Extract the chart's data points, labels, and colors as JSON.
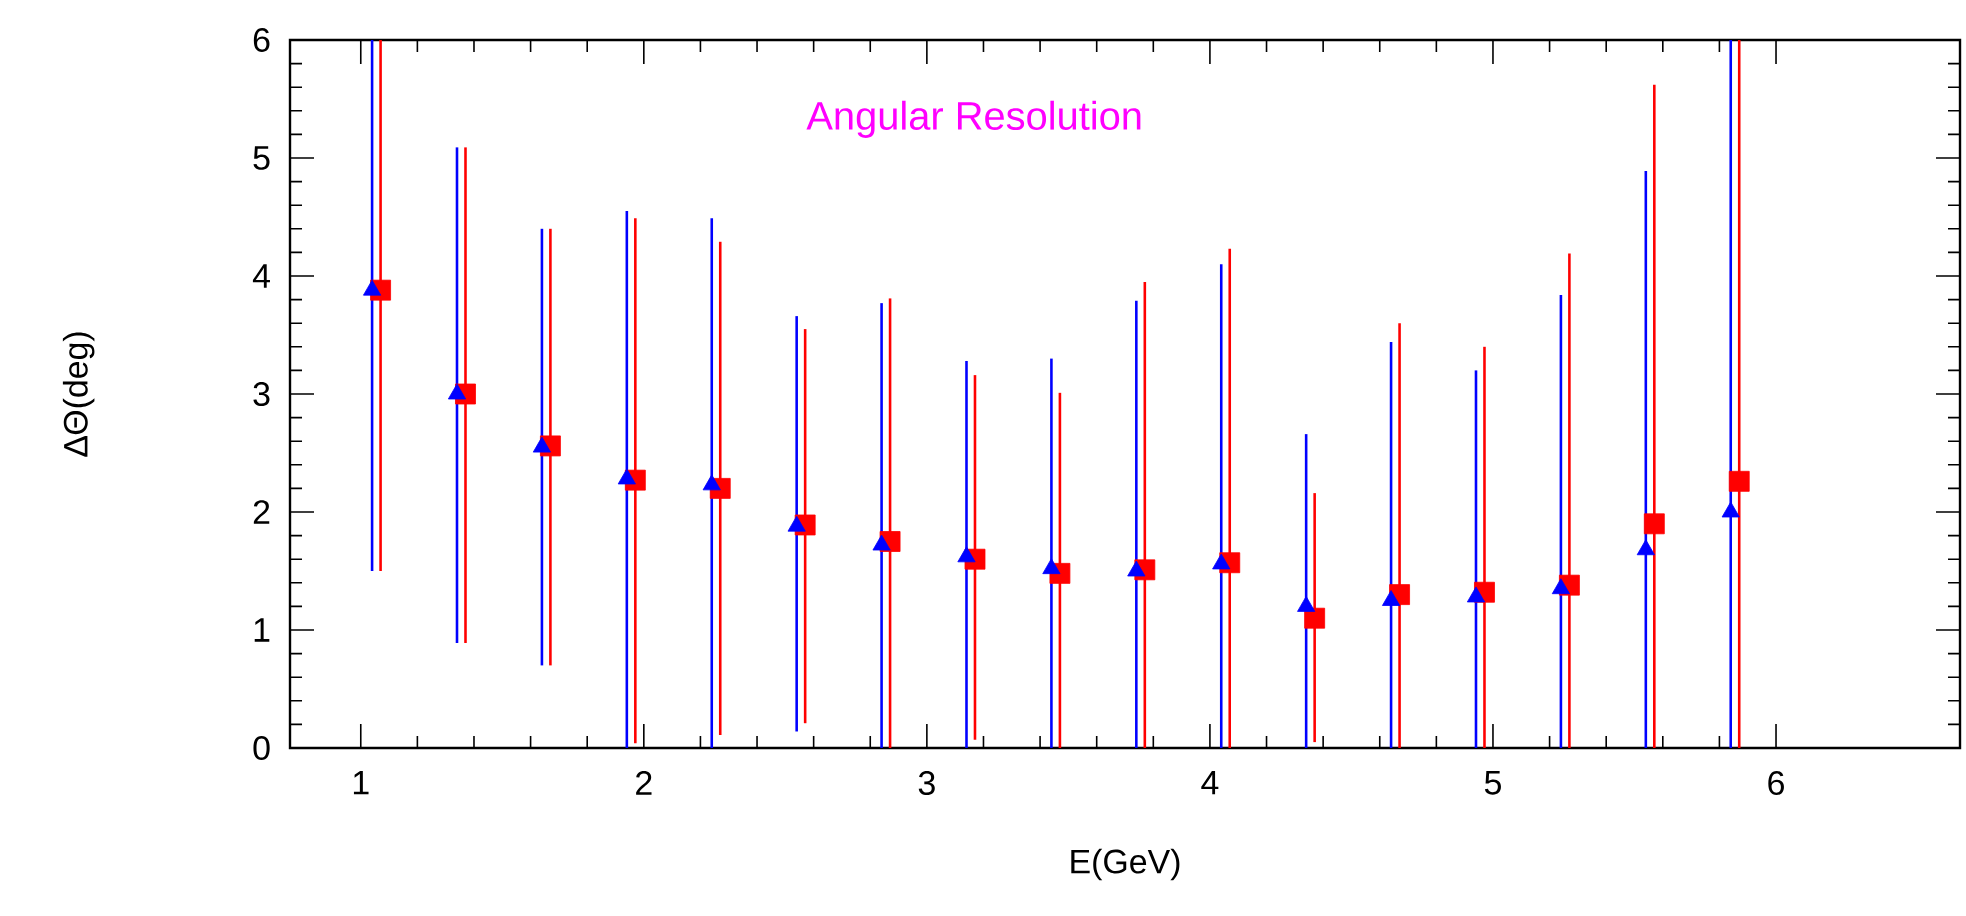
{
  "chart_data": {
    "type": "scatter",
    "title": "Angular Resolution",
    "xlabel": "E(GeV)",
    "ylabel": "ΔΘ(deg)",
    "xlim": [
      0.75,
      6.65
    ],
    "xticks": [
      1,
      2,
      3,
      4,
      5,
      6
    ],
    "ylim": [
      0,
      6
    ],
    "yticks": [
      0,
      1,
      2,
      3,
      4,
      5,
      6
    ],
    "series": [
      {
        "color": "#ff0000",
        "marker": "square",
        "x": [
          1.07,
          1.37,
          1.67,
          1.97,
          2.27,
          2.57,
          2.87,
          3.17,
          3.47,
          3.77,
          4.07,
          4.37,
          4.67,
          4.97,
          5.27,
          5.57,
          5.87
        ],
        "values": [
          3.88,
          3.0,
          2.56,
          2.27,
          2.2,
          1.89,
          1.75,
          1.6,
          1.48,
          1.51,
          1.57,
          1.1,
          1.3,
          1.32,
          1.38,
          1.9,
          2.26
        ],
        "errors": [
          [
            1.5,
            6
          ],
          [
            0.89,
            5.09
          ],
          [
            0.7,
            4.4
          ],
          [
            0.04,
            4.49
          ],
          [
            0.11,
            4.29
          ],
          [
            0.21,
            3.55
          ],
          [
            0,
            3.81
          ],
          [
            0.07,
            3.16
          ],
          [
            0,
            3.01
          ],
          [
            0,
            3.95
          ],
          [
            0,
            4.23
          ],
          [
            0.05,
            2.16
          ],
          [
            0,
            3.6
          ],
          [
            0,
            3.4
          ],
          [
            0,
            4.19
          ],
          [
            0,
            5.62
          ],
          [
            0,
            6
          ]
        ]
      },
      {
        "color": "#0000ff",
        "marker": "triangle",
        "x": [
          1.04,
          1.34,
          1.64,
          1.94,
          2.24,
          2.54,
          2.84,
          3.14,
          3.44,
          3.74,
          4.04,
          4.34,
          4.64,
          4.94,
          5.24,
          5.54,
          5.84
        ],
        "values": [
          3.88,
          3.0,
          2.55,
          2.28,
          2.23,
          1.88,
          1.72,
          1.62,
          1.52,
          1.5,
          1.56,
          1.2,
          1.25,
          1.28,
          1.35,
          1.68,
          2.0
        ],
        "errors": [
          [
            1.5,
            6
          ],
          [
            0.89,
            5.09
          ],
          [
            0.7,
            4.4
          ],
          [
            0,
            4.55
          ],
          [
            0,
            4.49
          ],
          [
            0.14,
            3.66
          ],
          [
            0,
            3.77
          ],
          [
            0,
            3.28
          ],
          [
            0,
            3.3
          ],
          [
            0,
            3.79
          ],
          [
            0,
            4.1
          ],
          [
            0,
            2.66
          ],
          [
            0,
            3.44
          ],
          [
            0,
            3.2
          ],
          [
            0,
            3.84
          ],
          [
            0,
            4.89
          ],
          [
            0,
            6
          ]
        ]
      }
    ]
  }
}
